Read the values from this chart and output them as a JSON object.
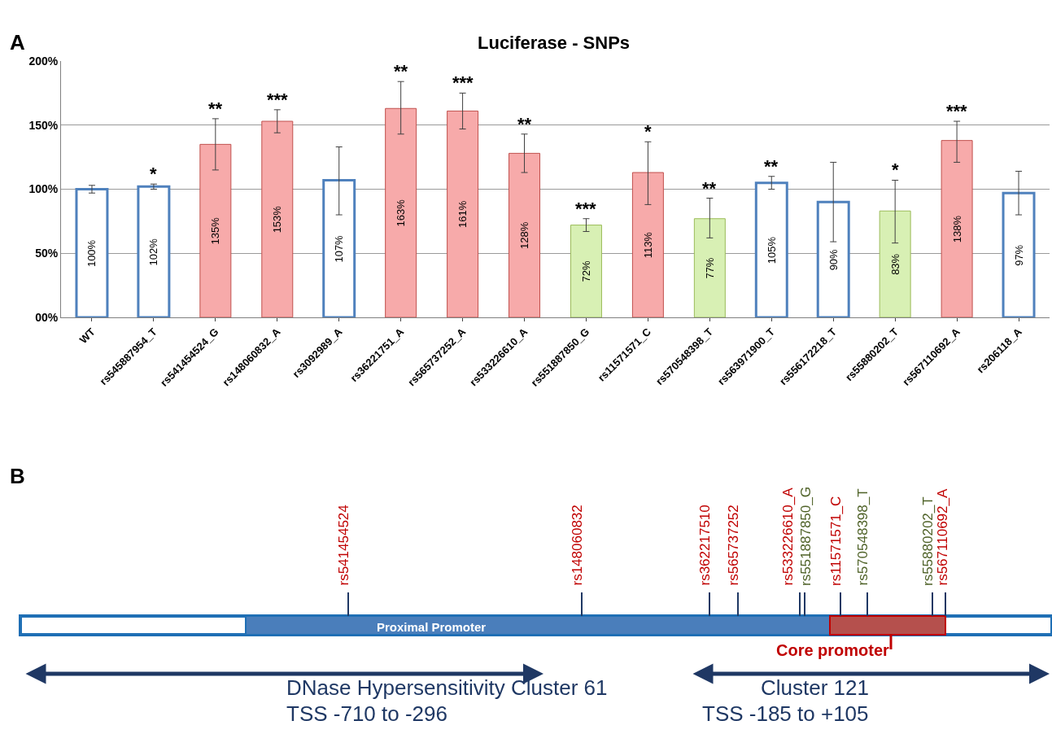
{
  "chart_data": [
    {
      "type": "bar",
      "title": "Luciferase - SNPs",
      "categories": [
        "WT",
        "rs545887954_T",
        "rs541454524_G",
        "rs148060832_A",
        "rs3092989_A",
        "rs36221751_A",
        "rs565737252_A",
        "rs533226610_A",
        "rs551887850_G",
        "rs11571571_C",
        "rs570548398_T",
        "rs563971900_T",
        "rs556172218_T",
        "rs55880202_T",
        "rs567110692_A",
        "rs206118_A"
      ],
      "values": [
        100,
        102,
        135,
        153,
        107,
        163,
        161,
        128,
        72,
        113,
        77,
        105,
        90,
        83,
        138,
        97
      ],
      "value_labels": [
        "100%",
        "102%",
        "135%",
        "153%",
        "107%",
        "163%",
        "161%",
        "128%",
        "72%",
        "113%",
        "77%",
        "105%",
        "90%",
        "83%",
        "138%",
        "97%"
      ],
      "errors": [
        3,
        2,
        20,
        9,
        [
          80,
          133
        ],
        [
          143,
          184
        ],
        [
          147,
          175
        ],
        15,
        5,
        [
          88,
          137
        ],
        [
          62,
          93
        ],
        5,
        [
          59,
          121
        ],
        [
          58,
          107
        ],
        [
          121,
          153
        ],
        [
          80,
          114
        ]
      ],
      "colors": [
        "#ffffff",
        "#ffffff",
        "#f7aaaa",
        "#f7aaaa",
        "#ffffff",
        "#f7aaaa",
        "#f7aaaa",
        "#f7aaaa",
        "#d8f0b4",
        "#f7aaaa",
        "#d8f0b4",
        "#ffffff",
        "#ffffff",
        "#d8f0b4",
        "#f7aaaa",
        "#ffffff"
      ],
      "ylim": [
        0,
        200
      ],
      "yticks": [
        {
          "value": 0,
          "label": "00%"
        },
        {
          "value": 50,
          "label": "50%"
        },
        {
          "value": 100,
          "label": "100%"
        },
        {
          "value": 150,
          "label": "150%"
        },
        {
          "value": 200,
          "label": "200%"
        }
      ],
      "grid": "y",
      "annotations": [
        "A",
        {
          "text": "*",
          "x": "rs545887954_T",
          "y": 104
        },
        {
          "text": "**",
          "x": "rs541454524_G",
          "y": 155
        },
        {
          "text": "***",
          "x": "rs148060832_A",
          "y": 162
        },
        {
          "text": "**",
          "x": "rs36221751_A",
          "y": 184
        },
        {
          "text": "***",
          "x": "rs565737252_A",
          "y": 175
        },
        {
          "text": "**",
          "x": "rs533226610_A",
          "y": 143
        },
        {
          "text": "***",
          "x": "rs551887850_G",
          "y": 77
        },
        {
          "text": "*",
          "x": "rs11571571_C",
          "y": 137
        },
        {
          "text": "**",
          "x": "rs570548398_T",
          "y": 93
        },
        {
          "text": "**",
          "x": "rs563971900_T",
          "y": 110
        },
        {
          "text": "*",
          "x": "rs55880202_T",
          "y": 107
        },
        {
          "text": "***",
          "x": "rs567110692_A",
          "y": 153
        }
      ]
    },
    {
      "type": "other",
      "annotations": [
        "B",
        "rs541454524",
        "rs148060832",
        "rs362217510",
        "rs565737252",
        "rs533226610_A",
        "rs551887850_G",
        "rs11571571_C",
        "rs570548398_T",
        "rs55880202_T",
        "rs567110692_A",
        "Proximal Promoter",
        "Core promoter",
        "DNase Hypersensitivity Cluster 61",
        "TSS -710 to -296",
        "Cluster 121",
        "TSS -185 to +105"
      ]
    }
  ]
}
